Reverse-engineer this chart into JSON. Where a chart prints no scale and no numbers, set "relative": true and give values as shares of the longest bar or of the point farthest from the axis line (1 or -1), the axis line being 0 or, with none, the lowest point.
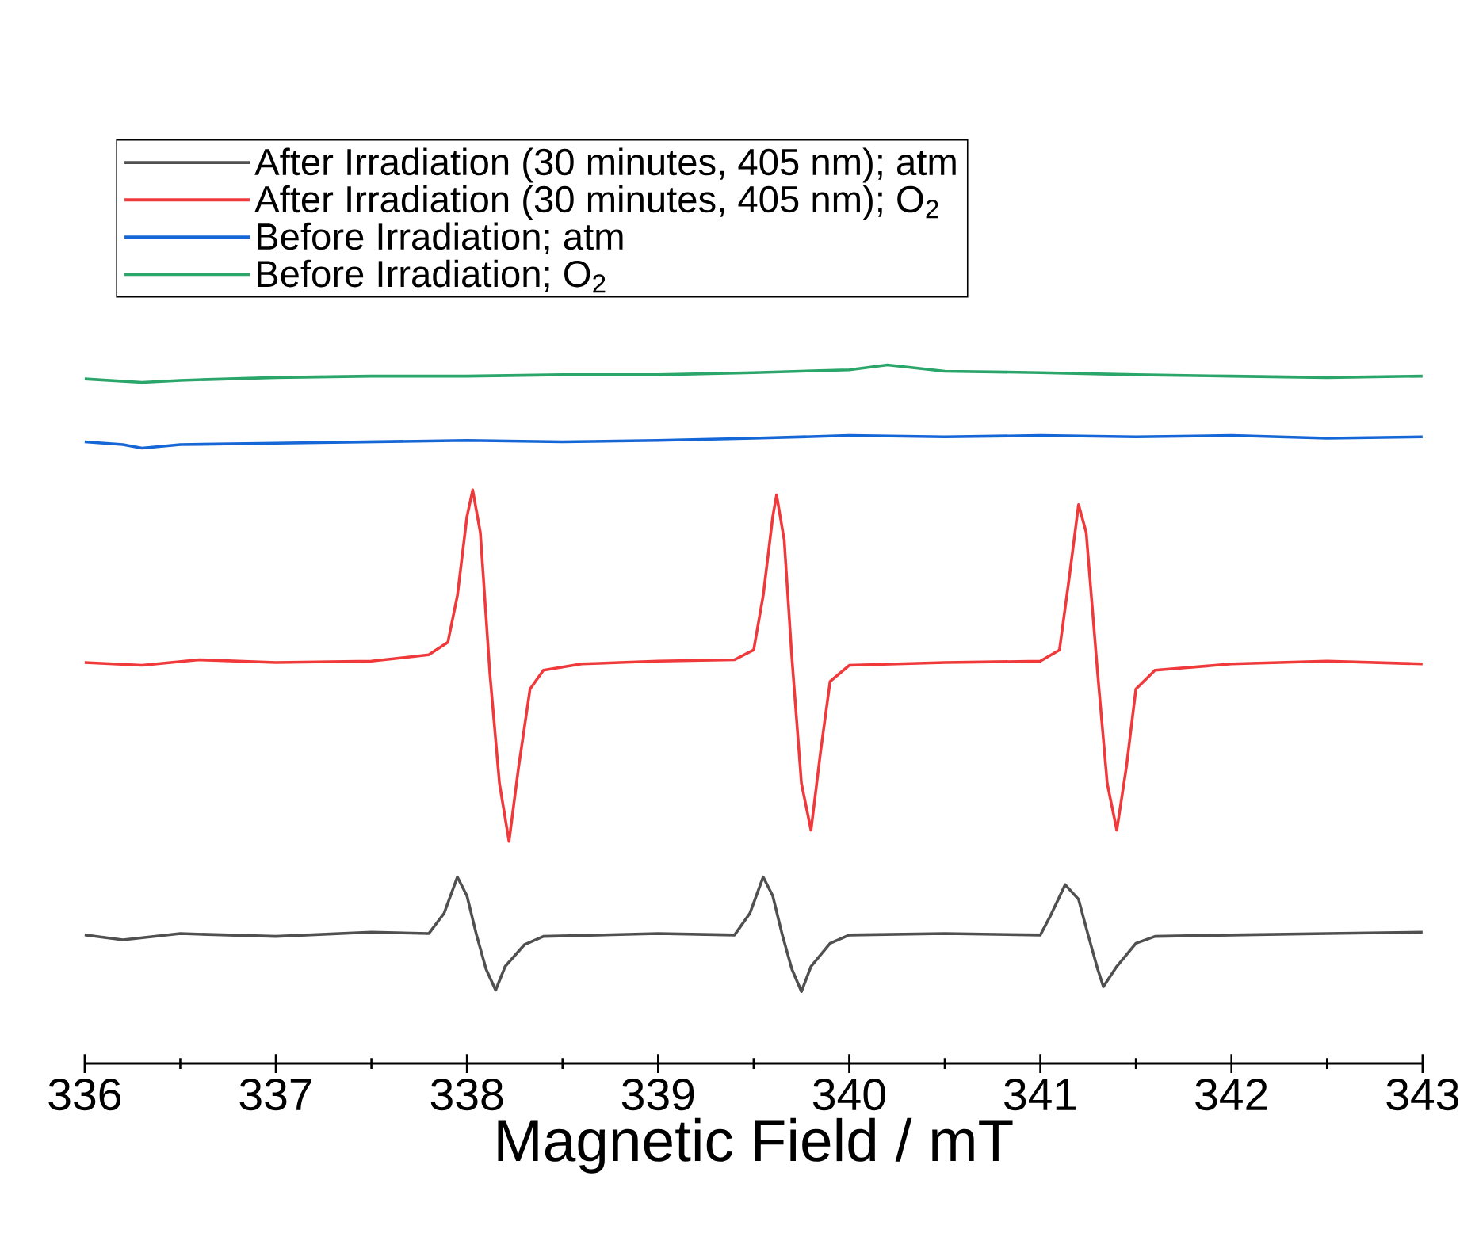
{
  "chart_data": {
    "type": "line",
    "relative": true,
    "xlabel": "Magnetic Field / mT",
    "legend": "top left",
    "xlim": [
      336,
      343
    ],
    "xticks": [
      336,
      {
        "value": 336.5,
        "label": null
      },
      337,
      {
        "value": 337.5,
        "label": null
      },
      338,
      {
        "value": 338.5,
        "label": null
      },
      339,
      {
        "value": 339.5,
        "label": null
      },
      340,
      {
        "value": 340.5,
        "label": null
      },
      341,
      {
        "value": 341.5,
        "label": null
      },
      342,
      {
        "value": 342.5,
        "label": null
      },
      343
    ],
    "series": [
      {
        "name": "After Irradiation (30 minutes, 405 nm); atm",
        "color": "#505050",
        "x": [
          336.0,
          336.2,
          336.5,
          337.0,
          337.5,
          337.8,
          337.88,
          337.95,
          338.0,
          338.05,
          338.1,
          338.15,
          338.2,
          338.3,
          338.4,
          339.0,
          339.4,
          339.48,
          339.55,
          339.6,
          339.65,
          339.7,
          339.75,
          339.8,
          339.9,
          340.0,
          340.5,
          341.0,
          341.05,
          341.13,
          341.2,
          341.25,
          341.3,
          341.33,
          341.4,
          341.5,
          341.6,
          342.0,
          342.5,
          343.0
        ],
        "values": [
          0.184,
          0.177,
          0.186,
          0.182,
          0.188,
          0.186,
          0.215,
          0.267,
          0.24,
          0.184,
          0.135,
          0.105,
          0.139,
          0.17,
          0.182,
          0.186,
          0.184,
          0.215,
          0.267,
          0.24,
          0.184,
          0.135,
          0.103,
          0.139,
          0.172,
          0.184,
          0.186,
          0.184,
          0.21,
          0.256,
          0.235,
          0.184,
          0.135,
          0.11,
          0.139,
          0.172,
          0.182,
          0.184,
          0.186,
          0.188
        ]
      },
      {
        "name": "After Irradiation (30 minutes, 405 nm); O$_{2}$",
        "color": "#f0393b",
        "x": [
          336.0,
          336.3,
          336.6,
          337.0,
          337.5,
          337.8,
          337.9,
          337.95,
          338.0,
          338.03,
          338.07,
          338.12,
          338.17,
          338.22,
          338.27,
          338.33,
          338.4,
          338.6,
          339.0,
          339.4,
          339.5,
          339.55,
          339.6,
          339.62,
          339.66,
          339.7,
          339.75,
          339.8,
          339.85,
          339.9,
          340.0,
          340.5,
          341.0,
          341.1,
          341.15,
          341.2,
          341.24,
          341.3,
          341.35,
          341.4,
          341.45,
          341.5,
          341.6,
          342.0,
          342.5,
          343.0
        ],
        "values": [
          0.574,
          0.57,
          0.578,
          0.574,
          0.576,
          0.585,
          0.603,
          0.67,
          0.783,
          0.821,
          0.76,
          0.558,
          0.401,
          0.318,
          0.424,
          0.536,
          0.563,
          0.572,
          0.576,
          0.578,
          0.592,
          0.67,
          0.783,
          0.814,
          0.749,
          0.581,
          0.401,
          0.334,
          0.446,
          0.547,
          0.57,
          0.574,
          0.576,
          0.592,
          0.693,
          0.8,
          0.76,
          0.558,
          0.401,
          0.334,
          0.424,
          0.536,
          0.563,
          0.572,
          0.576,
          0.572
        ]
      },
      {
        "name": "Before Irradiation; atm",
        "color": "#1566d6",
        "x": [
          336.0,
          336.2,
          336.3,
          336.5,
          337.0,
          337.5,
          338.0,
          338.5,
          339.0,
          339.5,
          340.0,
          340.5,
          341.0,
          341.5,
          342.0,
          342.5,
          343.0
        ],
        "values": [
          0.89,
          0.886,
          0.881,
          0.886,
          0.888,
          0.89,
          0.892,
          0.89,
          0.892,
          0.895,
          0.899,
          0.897,
          0.899,
          0.897,
          0.899,
          0.895,
          0.897
        ]
      },
      {
        "name": "Before Irradiation; O$_{2}$",
        "color": "#2aa66a",
        "x": [
          336.0,
          336.3,
          336.5,
          337.0,
          337.5,
          338.0,
          338.5,
          339.0,
          339.5,
          340.0,
          340.2,
          340.5,
          341.0,
          341.5,
          342.0,
          342.5,
          343.0
        ],
        "values": [
          0.98,
          0.975,
          0.978,
          0.982,
          0.984,
          0.984,
          0.986,
          0.986,
          0.989,
          0.993,
          1.0,
          0.991,
          0.989,
          0.986,
          0.984,
          0.982,
          0.984
        ]
      }
    ]
  }
}
